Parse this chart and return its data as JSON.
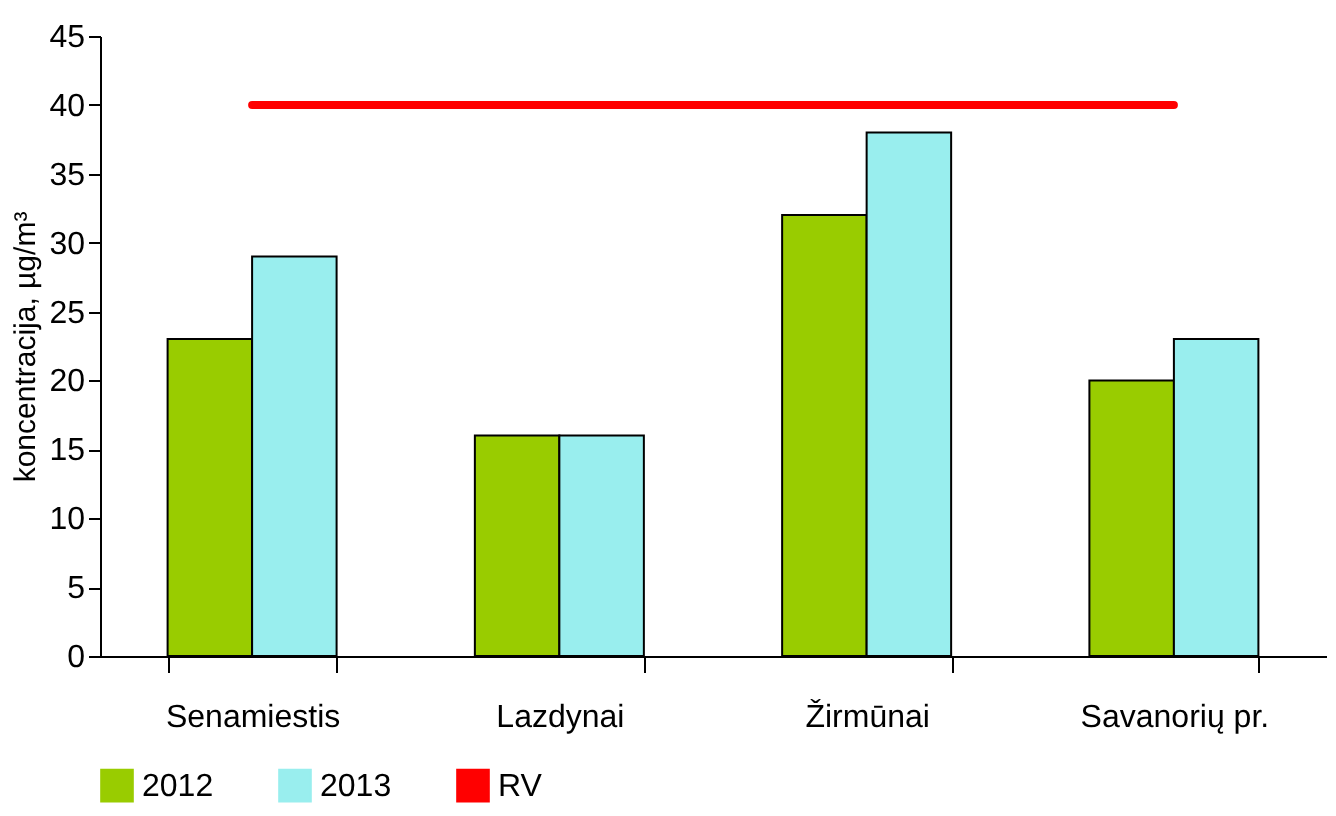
{
  "chart_data": {
    "type": "bar",
    "ylabel": "koncentracija, µg/m³",
    "categories": [
      "Senamiestis",
      "Lazdynai",
      "Žirmūnai",
      "Savanorių pr."
    ],
    "series": [
      {
        "name": "2012",
        "color": "#99cc00",
        "values": [
          23,
          16,
          32,
          20
        ]
      },
      {
        "name": "2013",
        "color": "#99eeee",
        "values": [
          29,
          16,
          38,
          23
        ]
      }
    ],
    "ref_lines": [
      {
        "axis": "y",
        "value": 40,
        "label": "RV",
        "color": "#ff0000"
      }
    ],
    "ylim": [
      0,
      45
    ],
    "yticks": [
      0,
      5,
      10,
      15,
      20,
      25,
      30,
      35,
      40,
      45
    ],
    "grid": false,
    "legend": "bottom"
  }
}
